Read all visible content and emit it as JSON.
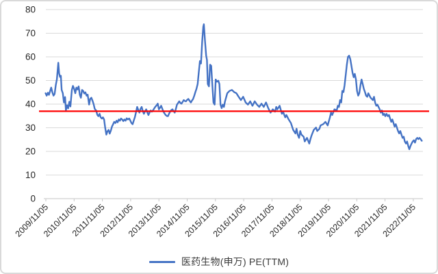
{
  "chart_data": {
    "type": "line",
    "title": "",
    "xlabel": "",
    "ylabel": "",
    "grid": "horizontal",
    "y_axis": {
      "min": 0,
      "max": 80,
      "tick_interval": 10,
      "ticks": [
        0,
        10,
        20,
        30,
        40,
        50,
        60,
        70,
        80
      ]
    },
    "x_axis": {
      "tick_labels": [
        "2009/11/05",
        "2010/11/05",
        "2011/11/05",
        "2012/11/05",
        "2013/11/05",
        "2014/11/05",
        "2015/11/05",
        "2016/11/05",
        "2017/11/05",
        "2018/11/05",
        "2019/11/05",
        "2020/11/05",
        "2021/11/05",
        "2022/11/05"
      ],
      "label_rotation_deg": -45
    },
    "reference_line": {
      "value": 37,
      "color": "#ff0000"
    },
    "legend": {
      "position": "bottom",
      "label": "医药生物(申万) PE(TTM)"
    },
    "series": [
      {
        "name": "医药生物(申万) PE(TTM)",
        "color": "#4472c4",
        "points": [
          [
            2009.84,
            44.6
          ],
          [
            2009.88,
            43.6
          ],
          [
            2009.92,
            44.8
          ],
          [
            2009.96,
            43.9
          ],
          [
            2010.0,
            45.5
          ],
          [
            2010.04,
            47.0
          ],
          [
            2010.08,
            45.0
          ],
          [
            2010.12,
            43.6
          ],
          [
            2010.16,
            44.3
          ],
          [
            2010.2,
            48.0
          ],
          [
            2010.24,
            50.5
          ],
          [
            2010.29,
            57.5
          ],
          [
            2010.32,
            53.0
          ],
          [
            2010.35,
            51.5
          ],
          [
            2010.38,
            52.0
          ],
          [
            2010.41,
            46.0
          ],
          [
            2010.45,
            44.6
          ],
          [
            2010.49,
            40.7
          ],
          [
            2010.53,
            43.0
          ],
          [
            2010.56,
            37.3
          ],
          [
            2010.6,
            39.5
          ],
          [
            2010.64,
            38.2
          ],
          [
            2010.68,
            41.0
          ],
          [
            2010.72,
            39.0
          ],
          [
            2010.77,
            46.0
          ],
          [
            2010.81,
            47.7
          ],
          [
            2010.85,
            46.5
          ],
          [
            2010.89,
            44.6
          ],
          [
            2010.93,
            47.0
          ],
          [
            2010.97,
            46.2
          ],
          [
            2011.01,
            47.5
          ],
          [
            2011.05,
            44.0
          ],
          [
            2011.09,
            42.7
          ],
          [
            2011.13,
            46.0
          ],
          [
            2011.17,
            45.6
          ],
          [
            2011.21,
            44.5
          ],
          [
            2011.25,
            45.0
          ],
          [
            2011.29,
            43.6
          ],
          [
            2011.33,
            44.0
          ],
          [
            2011.38,
            39.8
          ],
          [
            2011.42,
            42.2
          ],
          [
            2011.46,
            42.7
          ],
          [
            2011.5,
            41.5
          ],
          [
            2011.54,
            40.0
          ],
          [
            2011.58,
            38.0
          ],
          [
            2011.63,
            37.3
          ],
          [
            2011.67,
            35.5
          ],
          [
            2011.71,
            34.9
          ],
          [
            2011.75,
            35.9
          ],
          [
            2011.79,
            34.4
          ],
          [
            2011.83,
            33.9
          ],
          [
            2011.87,
            34.4
          ],
          [
            2011.91,
            33.5
          ],
          [
            2011.95,
            30.0
          ],
          [
            2011.99,
            27.1
          ],
          [
            2012.03,
            28.5
          ],
          [
            2012.07,
            29.1
          ],
          [
            2012.11,
            27.5
          ],
          [
            2012.15,
            28.8
          ],
          [
            2012.19,
            30.5
          ],
          [
            2012.23,
            31.5
          ],
          [
            2012.27,
            32.5
          ],
          [
            2012.31,
            32.0
          ],
          [
            2012.35,
            33.0
          ],
          [
            2012.39,
            32.3
          ],
          [
            2012.43,
            33.5
          ],
          [
            2012.47,
            33.0
          ],
          [
            2012.51,
            33.9
          ],
          [
            2012.55,
            33.5
          ],
          [
            2012.59,
            32.8
          ],
          [
            2012.63,
            33.5
          ],
          [
            2012.67,
            33.0
          ],
          [
            2012.71,
            34.0
          ],
          [
            2012.75,
            33.5
          ],
          [
            2012.8,
            33.9
          ],
          [
            2012.84,
            33.0
          ],
          [
            2012.88,
            32.0
          ],
          [
            2012.92,
            31.5
          ],
          [
            2012.96,
            33.0
          ],
          [
            2013.0,
            34.5
          ],
          [
            2013.04,
            36.5
          ],
          [
            2013.08,
            38.8
          ],
          [
            2013.12,
            37.5
          ],
          [
            2013.16,
            36.4
          ],
          [
            2013.2,
            38.0
          ],
          [
            2013.24,
            38.8
          ],
          [
            2013.28,
            37.0
          ],
          [
            2013.32,
            35.9
          ],
          [
            2013.36,
            37.0
          ],
          [
            2013.4,
            37.8
          ],
          [
            2013.44,
            36.5
          ],
          [
            2013.48,
            35.4
          ],
          [
            2013.52,
            36.5
          ],
          [
            2013.56,
            37.3
          ],
          [
            2013.6,
            36.8
          ],
          [
            2013.65,
            37.5
          ],
          [
            2013.69,
            38.3
          ],
          [
            2013.72,
            38.8
          ],
          [
            2013.77,
            39.5
          ],
          [
            2013.81,
            40.2
          ],
          [
            2013.85,
            37.8
          ],
          [
            2013.89,
            38.5
          ],
          [
            2013.93,
            39.3
          ],
          [
            2013.97,
            38.0
          ],
          [
            2014.01,
            36.8
          ],
          [
            2014.05,
            36.0
          ],
          [
            2014.09,
            35.4
          ],
          [
            2014.13,
            35.0
          ],
          [
            2014.17,
            34.9
          ],
          [
            2014.21,
            36.0
          ],
          [
            2014.25,
            36.8
          ],
          [
            2014.29,
            37.5
          ],
          [
            2014.33,
            37.8
          ],
          [
            2014.37,
            37.0
          ],
          [
            2014.41,
            36.4
          ],
          [
            2014.45,
            38.0
          ],
          [
            2014.49,
            39.8
          ],
          [
            2014.53,
            40.5
          ],
          [
            2014.57,
            41.2
          ],
          [
            2014.61,
            40.5
          ],
          [
            2014.65,
            40.2
          ],
          [
            2014.69,
            41.0
          ],
          [
            2014.73,
            41.7
          ],
          [
            2014.77,
            41.3
          ],
          [
            2014.81,
            41.2
          ],
          [
            2014.85,
            41.8
          ],
          [
            2014.89,
            42.2
          ],
          [
            2014.93,
            41.5
          ],
          [
            2014.98,
            40.7
          ],
          [
            2015.02,
            41.5
          ],
          [
            2015.06,
            42.2
          ],
          [
            2015.1,
            43.5
          ],
          [
            2015.14,
            45.1
          ],
          [
            2015.18,
            46.5
          ],
          [
            2015.22,
            48.5
          ],
          [
            2015.26,
            53.3
          ],
          [
            2015.3,
            58.2
          ],
          [
            2015.34,
            57.2
          ],
          [
            2015.38,
            66.4
          ],
          [
            2015.42,
            72.7
          ],
          [
            2015.44,
            73.8
          ],
          [
            2015.48,
            66.9
          ],
          [
            2015.52,
            60.6
          ],
          [
            2015.55,
            58.7
          ],
          [
            2015.58,
            48.5
          ],
          [
            2015.62,
            47.5
          ],
          [
            2015.66,
            56.7
          ],
          [
            2015.7,
            56.2
          ],
          [
            2015.74,
            48.0
          ],
          [
            2015.78,
            40.7
          ],
          [
            2015.82,
            39.8
          ],
          [
            2015.86,
            50.4
          ],
          [
            2015.9,
            49.5
          ],
          [
            2015.95,
            49.9
          ],
          [
            2015.99,
            48.5
          ],
          [
            2016.03,
            39.8
          ],
          [
            2016.07,
            38.3
          ],
          [
            2016.11,
            39.8
          ],
          [
            2016.15,
            38.8
          ],
          [
            2016.19,
            41.2
          ],
          [
            2016.27,
            44.6
          ],
          [
            2016.35,
            45.6
          ],
          [
            2016.43,
            46.0
          ],
          [
            2016.51,
            45.1
          ],
          [
            2016.59,
            44.6
          ],
          [
            2016.67,
            43.1
          ],
          [
            2016.75,
            41.7
          ],
          [
            2016.83,
            43.1
          ],
          [
            2016.92,
            40.7
          ],
          [
            2017.0,
            39.8
          ],
          [
            2017.08,
            41.2
          ],
          [
            2017.16,
            39.3
          ],
          [
            2017.24,
            41.2
          ],
          [
            2017.32,
            39.8
          ],
          [
            2017.4,
            38.8
          ],
          [
            2017.48,
            40.2
          ],
          [
            2017.56,
            38.8
          ],
          [
            2017.64,
            40.7
          ],
          [
            2017.72,
            38.3
          ],
          [
            2017.8,
            36.4
          ],
          [
            2017.88,
            37.8
          ],
          [
            2017.96,
            36.8
          ],
          [
            2018.0,
            38.8
          ],
          [
            2018.04,
            37.8
          ],
          [
            2018.12,
            39.3
          ],
          [
            2018.2,
            35.9
          ],
          [
            2018.24,
            36.8
          ],
          [
            2018.32,
            34.4
          ],
          [
            2018.36,
            35.4
          ],
          [
            2018.44,
            33.5
          ],
          [
            2018.52,
            32.0
          ],
          [
            2018.6,
            29.1
          ],
          [
            2018.68,
            27.6
          ],
          [
            2018.72,
            29.6
          ],
          [
            2018.76,
            27.1
          ],
          [
            2018.81,
            25.7
          ],
          [
            2018.85,
            28.6
          ],
          [
            2018.89,
            27.1
          ],
          [
            2018.97,
            26.2
          ],
          [
            2019.01,
            24.2
          ],
          [
            2019.09,
            25.7
          ],
          [
            2019.17,
            23.3
          ],
          [
            2019.21,
            25.2
          ],
          [
            2019.25,
            26.7
          ],
          [
            2019.33,
            29.1
          ],
          [
            2019.41,
            30.1
          ],
          [
            2019.45,
            28.6
          ],
          [
            2019.53,
            29.6
          ],
          [
            2019.57,
            31.0
          ],
          [
            2019.66,
            31.5
          ],
          [
            2019.74,
            32.5
          ],
          [
            2019.82,
            31.0
          ],
          [
            2019.9,
            34.4
          ],
          [
            2019.94,
            36.4
          ],
          [
            2019.98,
            35.4
          ],
          [
            2020.06,
            37.8
          ],
          [
            2020.14,
            37.3
          ],
          [
            2020.18,
            39.3
          ],
          [
            2020.22,
            38.8
          ],
          [
            2020.26,
            41.7
          ],
          [
            2020.3,
            40.7
          ],
          [
            2020.34,
            45.6
          ],
          [
            2020.38,
            45.1
          ],
          [
            2020.42,
            48.0
          ],
          [
            2020.46,
            52.4
          ],
          [
            2020.5,
            56.7
          ],
          [
            2020.54,
            60.0
          ],
          [
            2020.58,
            60.5
          ],
          [
            2020.62,
            59.1
          ],
          [
            2020.66,
            56.2
          ],
          [
            2020.7,
            53.3
          ],
          [
            2020.74,
            51.4
          ],
          [
            2020.78,
            52.8
          ],
          [
            2020.82,
            50.4
          ],
          [
            2020.86,
            45.6
          ],
          [
            2020.9,
            43.6
          ],
          [
            2020.94,
            44.6
          ],
          [
            2020.98,
            48.0
          ],
          [
            2021.02,
            50.4
          ],
          [
            2021.06,
            48.5
          ],
          [
            2021.1,
            46.5
          ],
          [
            2021.14,
            45.1
          ],
          [
            2021.18,
            43.6
          ],
          [
            2021.22,
            43.1
          ],
          [
            2021.26,
            44.6
          ],
          [
            2021.3,
            43.6
          ],
          [
            2021.34,
            42.7
          ],
          [
            2021.42,
            41.7
          ],
          [
            2021.46,
            43.1
          ],
          [
            2021.5,
            40.7
          ],
          [
            2021.54,
            39.3
          ],
          [
            2021.58,
            39.8
          ],
          [
            2021.66,
            37.8
          ],
          [
            2021.7,
            36.4
          ],
          [
            2021.74,
            37.3
          ],
          [
            2021.78,
            35.4
          ],
          [
            2021.82,
            35.9
          ],
          [
            2021.86,
            34.9
          ],
          [
            2021.9,
            35.9
          ],
          [
            2021.95,
            34.9
          ],
          [
            2021.99,
            35.4
          ],
          [
            2022.03,
            33.9
          ],
          [
            2022.07,
            32.5
          ],
          [
            2022.11,
            33.5
          ],
          [
            2022.15,
            32.0
          ],
          [
            2022.19,
            30.5
          ],
          [
            2022.23,
            31.5
          ],
          [
            2022.31,
            28.6
          ],
          [
            2022.35,
            27.6
          ],
          [
            2022.39,
            28.6
          ],
          [
            2022.43,
            27.1
          ],
          [
            2022.47,
            25.7
          ],
          [
            2022.51,
            26.2
          ],
          [
            2022.55,
            24.2
          ],
          [
            2022.59,
            23.3
          ],
          [
            2022.63,
            24.2
          ],
          [
            2022.67,
            22.3
          ],
          [
            2022.71,
            20.9
          ],
          [
            2022.75,
            22.3
          ],
          [
            2022.79,
            23.3
          ],
          [
            2022.83,
            24.2
          ],
          [
            2022.87,
            24.7
          ],
          [
            2022.91,
            23.7
          ],
          [
            2022.95,
            25.2
          ],
          [
            2022.99,
            25.7
          ],
          [
            2023.03,
            25.2
          ],
          [
            2023.07,
            25.7
          ],
          [
            2023.11,
            25.2
          ],
          [
            2023.15,
            24.5
          ]
        ]
      }
    ]
  },
  "colors": {
    "series_blue": "#4472c4",
    "reference_red": "#ff0000",
    "gridline": "#dadada",
    "axis_line": "#c6c6c6",
    "tick_label": "#262626",
    "card_border": "#d9d9d9",
    "background": "#ffffff"
  }
}
